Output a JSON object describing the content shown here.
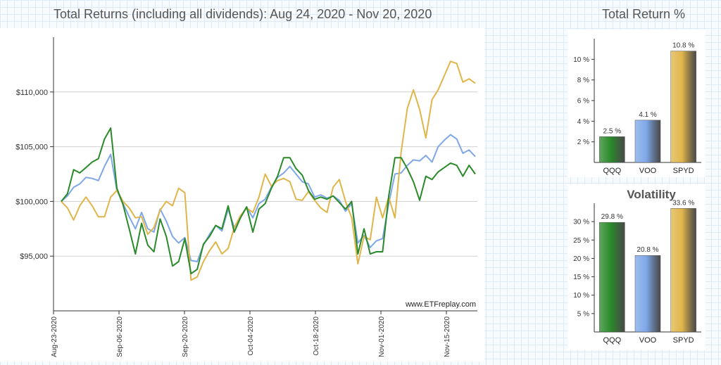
{
  "main_title": "Total Returns (including all dividends): Aug 24, 2020 - Nov 20, 2020",
  "return_title": "Total Return %",
  "watermark": "www.ETFreplay.com",
  "colors": {
    "QQQ": "#2a8a2a",
    "VOO": "#7ea7e8",
    "SPYD": "#e0b54a"
  },
  "chart_data": [
    {
      "type": "line",
      "title": "Total Returns (including all dividends): Aug 24, 2020 - Nov 20, 2020",
      "ylim": [
        90000,
        115000
      ],
      "yticks": [
        {
          "value": 95000,
          "label": "$95,000"
        },
        {
          "value": 100000,
          "label": "$100,000"
        },
        {
          "value": 105000,
          "label": "$105,000"
        },
        {
          "value": 110000,
          "label": "$110,000"
        }
      ],
      "xticks": [
        "Aug-23-2020",
        "Sep-06-2020",
        "Sep-20-2020",
        "Oct-04-2020",
        "Oct-18-2020",
        "Nov-01-2020",
        "Nov-15-2020"
      ],
      "grid": true,
      "series": [
        {
          "name": "QQQ",
          "color": "#2a8a2a",
          "values": [
            100000,
            100700,
            102900,
            102600,
            103100,
            103600,
            103900,
            105700,
            106700,
            101200,
            99700,
            97500,
            95200,
            98000,
            96000,
            95400,
            98400,
            96800,
            94100,
            94500,
            96600,
            93400,
            93800,
            96100,
            96800,
            97800,
            97500,
            99600,
            97200,
            98500,
            99500,
            97200,
            99300,
            99800,
            101200,
            102300,
            104000,
            104000,
            103000,
            102400,
            101000,
            100200,
            100400,
            100200,
            100500,
            99900,
            99300,
            100000,
            95200,
            97500,
            95200,
            95400,
            95400,
            100500,
            104000,
            104000,
            103000,
            101800,
            100100,
            102300,
            102000,
            102700,
            103100,
            103500,
            103300,
            102300,
            103300,
            102500
          ]
        },
        {
          "name": "VOO",
          "color": "#7ea7e8",
          "values": [
            100000,
            100500,
            101300,
            101600,
            102200,
            102100,
            101900,
            103200,
            104300,
            101000,
            99800,
            98600,
            97500,
            99000,
            97500,
            97200,
            99300,
            98200,
            96800,
            96200,
            96700,
            94600,
            94500,
            96000,
            97000,
            97800,
            97300,
            99300,
            97600,
            98600,
            99500,
            98500,
            99800,
            100200,
            101300,
            102200,
            102600,
            103200,
            102500,
            101800,
            101600,
            100400,
            100600,
            100300,
            100500,
            100100,
            99100,
            99800,
            96200,
            96900,
            95800,
            96400,
            96600,
            99800,
            102500,
            102600,
            103300,
            103800,
            103700,
            104200,
            103600,
            105000,
            105600,
            106100,
            105700,
            104400,
            104700,
            104100
          ]
        },
        {
          "name": "SPYD",
          "color": "#e0b54a",
          "values": [
            100000,
            99400,
            98300,
            99600,
            100400,
            99600,
            98600,
            98600,
            100400,
            101000,
            100000,
            99400,
            98500,
            98600,
            97000,
            97600,
            99200,
            100000,
            99600,
            101200,
            100800,
            92800,
            93100,
            94500,
            95500,
            96300,
            95200,
            95700,
            97600,
            98700,
            99400,
            99000,
            100400,
            102500,
            101400,
            101900,
            102100,
            101800,
            100200,
            100100,
            100900,
            100100,
            99400,
            99000,
            101300,
            102000,
            100000,
            98500,
            94300,
            96800,
            96500,
            100400,
            98500,
            100400,
            98500,
            104500,
            108500,
            110200,
            108400,
            105800,
            109300,
            110200,
            111500,
            112800,
            112600,
            110900,
            111200,
            110800
          ]
        }
      ]
    },
    {
      "type": "bar",
      "title": "Total Return %",
      "categories": [
        "QQQ",
        "VOO",
        "SPYD"
      ],
      "values": [
        2.5,
        4.1,
        10.8
      ],
      "value_labels": [
        "2.5 %",
        "4.1 %",
        "10.8 %"
      ],
      "ylim": [
        0,
        12
      ],
      "yticks": [
        {
          "value": 2,
          "label": "2 %"
        },
        {
          "value": 4,
          "label": "4 %"
        },
        {
          "value": 6,
          "label": "6 %"
        },
        {
          "value": 8,
          "label": "8 %"
        },
        {
          "value": 10,
          "label": "10 %"
        }
      ]
    },
    {
      "type": "bar",
      "title": "Volatility",
      "categories": [
        "QQQ",
        "VOO",
        "SPYD"
      ],
      "values": [
        29.8,
        20.8,
        33.6
      ],
      "value_labels": [
        "29.8 %",
        "20.8 %",
        "33.6 %"
      ],
      "ylim": [
        0,
        35
      ],
      "yticks": [
        {
          "value": 5,
          "label": "5 %"
        },
        {
          "value": 10,
          "label": "10 %"
        },
        {
          "value": 15,
          "label": "15 %"
        },
        {
          "value": 20,
          "label": "20 %"
        },
        {
          "value": 25,
          "label": "25 %"
        },
        {
          "value": 30,
          "label": "30 %"
        }
      ]
    }
  ]
}
